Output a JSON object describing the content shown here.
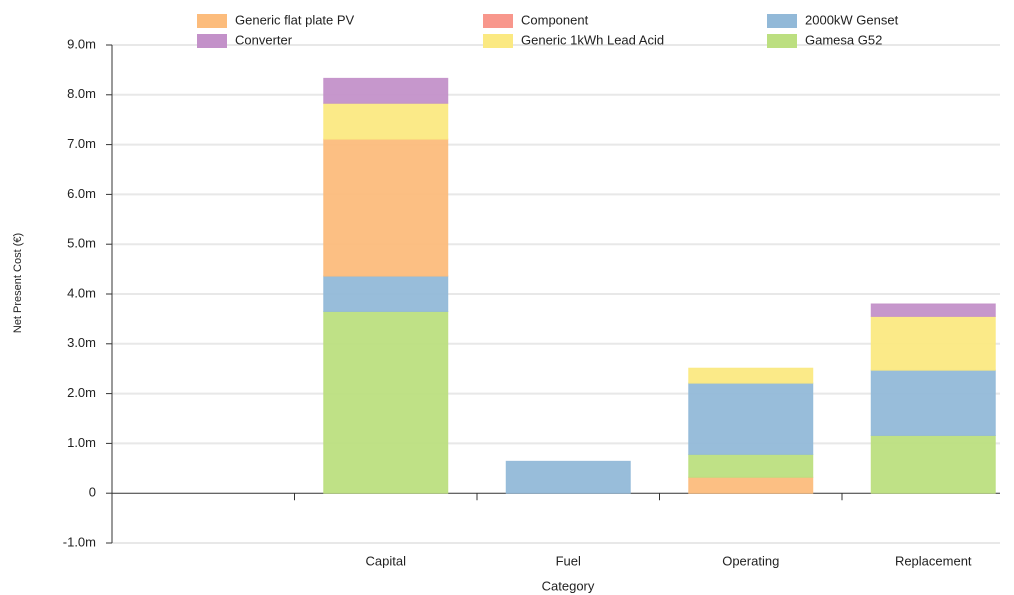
{
  "chart_data": {
    "type": "stacked_bar",
    "y_label": "Net Present Cost (€)",
    "x_label": "Category",
    "categories": [
      null,
      "Capital",
      "Fuel",
      "Operating",
      "Replacement"
    ],
    "series": [
      {
        "name": "Generic flat plate PV",
        "color": "#fcbc7c",
        "values": [
          null,
          2750000,
          0,
          320000,
          0
        ]
      },
      {
        "name": "Component",
        "color": "#f8978c",
        "values": [
          null,
          0,
          0,
          0,
          0
        ]
      },
      {
        "name": "2000kW Genset",
        "color": "#92b9d8",
        "values": [
          null,
          710000,
          640000,
          1430000,
          1310000
        ]
      },
      {
        "name": "Converter",
        "color": "#c391c9",
        "values": [
          null,
          500000,
          0,
          0,
          250000
        ]
      },
      {
        "name": "Generic 1kWh Lead Acid",
        "color": "#fbe982",
        "values": [
          null,
          720000,
          0,
          300000,
          1080000
        ]
      },
      {
        "name": "Gamesa G52",
        "color": "#bcdf80",
        "values": [
          null,
          3650000,
          0,
          460000,
          1160000
        ]
      }
    ],
    "ylim": [
      -1000000,
      9000000
    ],
    "yticks": [
      {
        "value": -1000000,
        "label": "-1.0m"
      },
      0,
      {
        "value": 1000000,
        "label": "1.0m"
      },
      {
        "value": 2000000,
        "label": "2.0m"
      },
      {
        "value": 3000000,
        "label": "3.0m"
      },
      {
        "value": 4000000,
        "label": "4.0m"
      },
      {
        "value": 5000000,
        "label": "5.0m"
      },
      {
        "value": 6000000,
        "label": "6.0m"
      },
      {
        "value": 7000000,
        "label": "7.0m"
      },
      {
        "value": 8000000,
        "label": "8.0m"
      },
      {
        "value": 9000000,
        "label": "9.0m"
      }
    ],
    "grid": true
  }
}
